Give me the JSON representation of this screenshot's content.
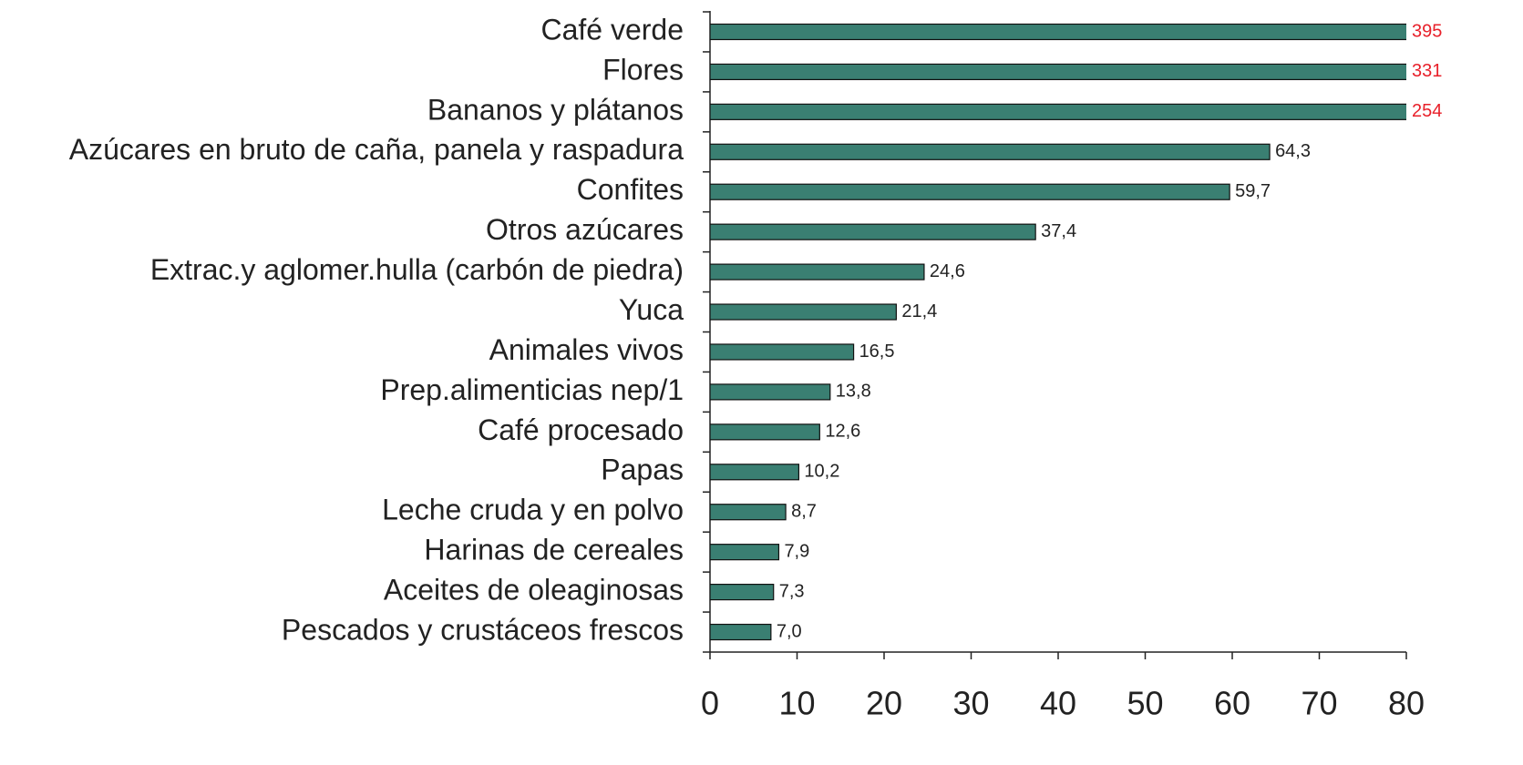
{
  "chart_data": {
    "type": "barh",
    "categories": [
      "Café verde",
      "Flores",
      "Bananos y plátanos",
      "Azúcares en bruto de caña, panela y raspadura",
      "Confites",
      "Otros azúcares",
      "Extrac.y aglomer.hulla (carbón de piedra)",
      "Yuca",
      "Animales vivos",
      "Prep.alimenticias nep/1",
      "Café procesado",
      "Papas",
      "Leche cruda y en polvo",
      "Harinas de cereales",
      "Aceites de oleaginosas",
      "Pescados y crustáceos frescos"
    ],
    "values": [
      395,
      331,
      254,
      64.3,
      59.7,
      37.4,
      24.6,
      21.4,
      16.5,
      13.8,
      12.6,
      10.2,
      8.7,
      7.9,
      7.3,
      7.0
    ],
    "value_labels": [
      "395",
      "331",
      "254",
      "64,3",
      "59,7",
      "37,4",
      "24,6",
      "21,4",
      "16,5",
      "13,8",
      "12,6",
      "10,2",
      "8,7",
      "7,9",
      "7,3",
      "7,0"
    ],
    "color": "#3a7f72",
    "overflow_label_color": "#e8202a",
    "xlim": [
      0,
      80
    ],
    "xticks": [
      0,
      10,
      20,
      30,
      40,
      50,
      60,
      70,
      80
    ],
    "grid": false
  }
}
